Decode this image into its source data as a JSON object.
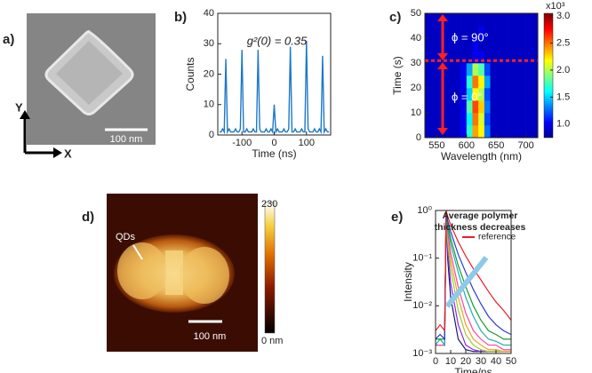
{
  "panel_labels": [
    "a)",
    "b)",
    "c)",
    "d)",
    "e)"
  ],
  "images": {
    "sem": {
      "scale_bar": "100 nm",
      "axis_y": "Y",
      "axis_x": "X"
    },
    "afm": {
      "marker": "QDs",
      "scale_bar": "100 nm",
      "colorbar_top": "230",
      "colorbar_bottom": "0 nm"
    }
  },
  "chart_data": [
    {
      "type": "line",
      "annotation": "g²(0) = 0.35",
      "x_label": "Time (ns)",
      "y_label": "Counts",
      "color": "#1f78c8",
      "x": [
        -170,
        -165,
        -160,
        -155,
        -150,
        -145,
        -140,
        -135,
        -130,
        -125,
        -120,
        -115,
        -110,
        -105,
        -100,
        -95,
        -90,
        -85,
        -80,
        -75,
        -70,
        -65,
        -60,
        -55,
        -50,
        -45,
        -40,
        -35,
        -30,
        -25,
        -20,
        -15,
        -10,
        -5,
        0,
        5,
        10,
        15,
        20,
        25,
        30,
        35,
        40,
        45,
        50,
        55,
        60,
        65,
        70,
        75,
        80,
        85,
        90,
        95,
        100,
        105,
        110,
        115,
        120,
        125,
        130,
        135,
        140,
        145,
        150,
        155,
        160,
        165,
        170
      ],
      "values": [
        1,
        1,
        2,
        1,
        25,
        1,
        2,
        1,
        1,
        1,
        2,
        1,
        1,
        2,
        28,
        1,
        1,
        2,
        1,
        1,
        1,
        2,
        1,
        1,
        28,
        2,
        1,
        1,
        1,
        2,
        1,
        1,
        2,
        1,
        10,
        1,
        2,
        1,
        1,
        1,
        2,
        1,
        1,
        2,
        29,
        1,
        1,
        2,
        1,
        1,
        1,
        2,
        1,
        1,
        31,
        2,
        1,
        1,
        1,
        2,
        1,
        1,
        2,
        1,
        26,
        1,
        2,
        1,
        1
      ],
      "xlim": [
        -175,
        175
      ],
      "ylim": [
        0,
        40
      ],
      "xticks": [
        -100,
        0,
        100
      ],
      "yticks": [
        0,
        10,
        20,
        30,
        40
      ]
    },
    {
      "type": "heatmap",
      "x_label": "Wavelength (nm)",
      "y_label": "Time (s)",
      "annotations": [
        "ϕ = 90°",
        "ϕ = 0°"
      ],
      "hline": 31,
      "hline_color": "#ff2020",
      "x": [
        535,
        545,
        555,
        565,
        575,
        585,
        595,
        605,
        615,
        625,
        635,
        645,
        655,
        665,
        675,
        685,
        695,
        705,
        715
      ],
      "y": [
        2.5,
        7.5,
        12.5,
        17.5,
        22.5,
        27.5,
        32.5,
        37.5,
        42.5,
        47.5
      ],
      "values": [
        [
          0.9,
          0.9,
          0.9,
          0.9,
          0.9,
          0.9,
          1.0,
          1.7,
          2.4,
          2.2,
          1.3,
          0.9,
          0.9,
          0.9,
          0.9,
          0.9,
          0.9,
          0.9,
          0.9
        ],
        [
          0.9,
          0.9,
          0.9,
          0.9,
          0.9,
          0.9,
          1.0,
          1.6,
          2.5,
          2.1,
          1.2,
          0.9,
          0.9,
          0.9,
          0.9,
          0.9,
          0.9,
          0.9,
          0.9
        ],
        [
          0.9,
          0.9,
          0.9,
          0.9,
          0.9,
          0.9,
          1.0,
          1.8,
          2.6,
          2.3,
          1.3,
          0.9,
          0.9,
          0.9,
          0.9,
          0.9,
          0.9,
          0.9,
          0.9
        ],
        [
          0.9,
          0.9,
          0.9,
          0.9,
          0.9,
          0.9,
          1.0,
          1.5,
          2.2,
          2.0,
          1.2,
          0.9,
          0.9,
          0.9,
          0.9,
          0.9,
          0.9,
          0.9,
          0.9
        ],
        [
          0.9,
          0.9,
          0.9,
          0.9,
          0.9,
          0.9,
          1.0,
          1.7,
          2.5,
          2.2,
          1.4,
          0.9,
          0.9,
          0.9,
          0.9,
          0.9,
          0.9,
          0.9,
          0.9
        ],
        [
          0.9,
          0.9,
          0.9,
          0.9,
          0.9,
          0.9,
          1.0,
          1.4,
          2.0,
          1.8,
          1.2,
          0.9,
          0.9,
          0.9,
          0.9,
          0.9,
          0.9,
          0.9,
          0.9
        ],
        [
          0.9,
          0.9,
          0.9,
          0.9,
          0.9,
          0.9,
          0.9,
          0.9,
          1.0,
          1.0,
          0.9,
          0.9,
          0.9,
          0.9,
          0.9,
          0.9,
          0.9,
          0.9,
          0.9
        ],
        [
          0.9,
          0.9,
          0.9,
          0.9,
          0.9,
          0.9,
          0.9,
          0.9,
          1.0,
          0.9,
          0.9,
          0.9,
          0.9,
          0.9,
          0.9,
          0.9,
          0.9,
          0.9,
          0.9
        ],
        [
          0.9,
          0.9,
          0.9,
          0.9,
          0.9,
          0.9,
          0.9,
          0.9,
          0.9,
          1.0,
          0.9,
          0.9,
          0.9,
          0.9,
          0.9,
          0.9,
          0.9,
          0.9,
          0.9
        ],
        [
          0.9,
          0.9,
          0.9,
          0.9,
          0.9,
          0.9,
          0.9,
          0.9,
          0.9,
          0.9,
          0.9,
          0.9,
          0.9,
          0.9,
          0.9,
          0.9,
          0.9,
          0.9,
          0.9
        ]
      ],
      "xlim": [
        530,
        720
      ],
      "ylim": [
        0,
        50
      ],
      "xticks": [
        550,
        600,
        650,
        700
      ],
      "yticks": [
        0,
        10,
        20,
        30,
        40,
        50
      ],
      "colorbar": {
        "label": "x10³",
        "clim": [
          0.75,
          3.05
        ],
        "ticks": [
          {
            "value": 1,
            "label": "1.0"
          },
          1.5,
          {
            "value": 2,
            "label": "2.0"
          },
          2.5,
          {
            "value": 3,
            "label": "3.0"
          }
        ]
      }
    },
    {
      "type": "line",
      "x_label": "Time/ns",
      "y_label": "Intensity",
      "annotation": [
        "Average polymer",
        "thickness decreases"
      ],
      "log_y": true,
      "x": [
        0,
        3,
        6,
        7,
        8,
        10,
        15,
        20,
        25,
        30,
        35,
        40,
        45,
        50
      ],
      "series": [
        {
          "color": "#1a1a80",
          "values": [
            0.0015,
            0.0015,
            0.0015,
            1,
            0.1,
            0.015,
            0.002,
            0.0012,
            0.0011,
            0.0011,
            0.0011,
            0.0011,
            0.0011,
            0.0011
          ]
        },
        {
          "color": "#8a2be2",
          "values": [
            0.0015,
            0.0015,
            0.0015,
            1,
            0.15,
            0.03,
            0.004,
            0.0015,
            0.0012,
            0.0011,
            0.0011,
            0.0011,
            0.0011,
            0.0011
          ]
        },
        {
          "color": "#9acd32",
          "values": [
            0.0015,
            0.0015,
            0.0015,
            1,
            0.22,
            0.06,
            0.008,
            0.0025,
            0.0015,
            0.0012,
            0.0011,
            0.0011,
            0.0011,
            0.0011
          ]
        },
        {
          "color": "#f0a020",
          "values": [
            0.0015,
            0.0015,
            0.0015,
            1,
            0.3,
            0.09,
            0.015,
            0.004,
            0.002,
            0.0015,
            0.0012,
            0.0012,
            0.0011,
            0.0011
          ]
        },
        {
          "color": "#f04aa8",
          "values": [
            0.0015,
            0.0015,
            0.0015,
            1,
            0.36,
            0.13,
            0.025,
            0.007,
            0.003,
            0.002,
            0.0015,
            0.0015,
            0.0012,
            0.0012
          ]
        },
        {
          "color": "#20b0b0",
          "values": [
            0.0015,
            0.002,
            0.0015,
            1,
            0.45,
            0.2,
            0.05,
            0.015,
            0.006,
            0.003,
            0.002,
            0.0018,
            0.0015,
            0.0015
          ]
        },
        {
          "color": "#1a9a2a",
          "values": [
            0.002,
            0.002,
            0.002,
            1,
            0.52,
            0.26,
            0.07,
            0.025,
            0.01,
            0.005,
            0.003,
            0.0025,
            0.002,
            0.002
          ]
        },
        {
          "color": "#2a3bd0",
          "values": [
            0.002,
            0.0025,
            0.002,
            1,
            0.62,
            0.36,
            0.12,
            0.05,
            0.022,
            0.011,
            0.006,
            0.004,
            0.003,
            0.0025
          ]
        },
        {
          "name": "reference",
          "color": "#e8202a",
          "values": [
            0.003,
            0.004,
            0.003,
            1,
            0.75,
            0.5,
            0.22,
            0.11,
            0.06,
            0.035,
            0.02,
            0.012,
            0.008,
            0.005
          ]
        }
      ],
      "xlim": [
        0,
        50
      ],
      "ylim": [
        0.001,
        1
      ],
      "xticks": [
        0,
        10,
        20,
        30,
        40,
        50
      ],
      "yticks": [
        {
          "value": 0.001,
          "label": "10⁻³"
        },
        {
          "value": 0.01,
          "label": "10⁻²"
        },
        {
          "value": 0.1,
          "label": "10⁻¹"
        },
        {
          "value": 1,
          "label": "10⁰"
        }
      ]
    }
  ]
}
